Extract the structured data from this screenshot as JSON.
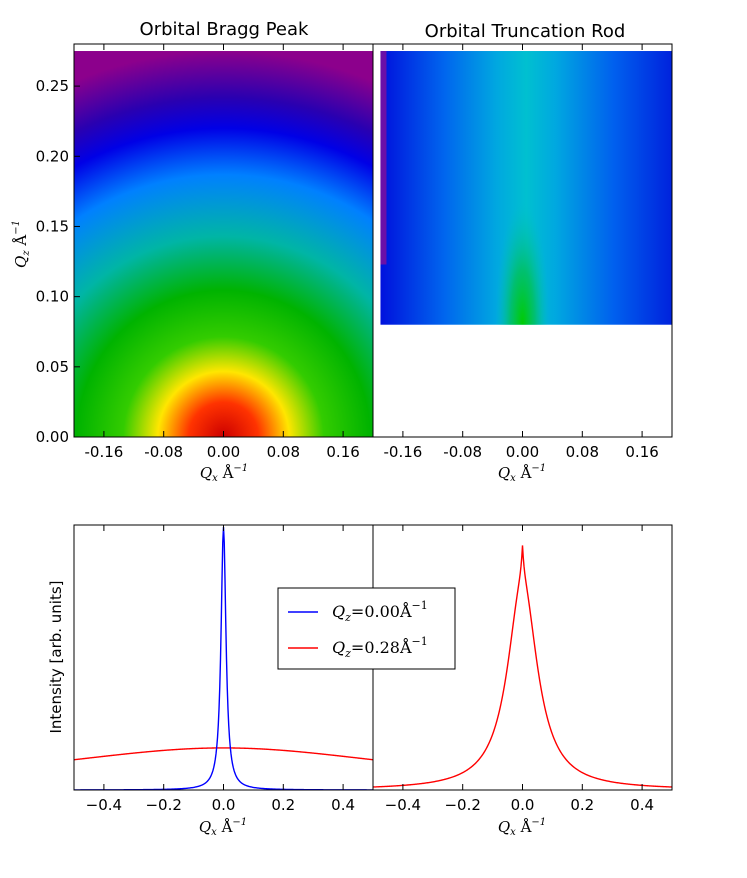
{
  "colors": {
    "blue": "#0000ff",
    "red": "#ff0000",
    "colormap": [
      "#800080",
      "#0000ff",
      "#00bfff",
      "#00c000",
      "#ffff00",
      "#ff0000"
    ]
  },
  "chart_data": [
    {
      "type": "heatmap",
      "title": "Orbital Bragg Peak",
      "xlabel": "Q_x Å^-1",
      "ylabel": "Q_z Å^-1",
      "xlim": [
        -0.2,
        0.2
      ],
      "ylim": [
        0,
        0.28
      ],
      "xticks": [
        "-0.16",
        "-0.08",
        "0.00",
        "0.08",
        "0.16"
      ],
      "yticks": [
        "0.00",
        "0.05",
        "0.10",
        "0.15",
        "0.20",
        "0.25"
      ],
      "data_extent": {
        "qx": [
          -0.2,
          0.2
        ],
        "qz": [
          0,
          0.275
        ]
      },
      "colormap": "spectral",
      "peak": {
        "qx": 0.0,
        "qz": 0.0
      }
    },
    {
      "type": "heatmap",
      "title": "Orbital Truncation Rod",
      "xlabel": "Q_x Å^-1",
      "xlim": [
        -0.2,
        0.2
      ],
      "ylim": [
        0,
        0.28
      ],
      "xticks": [
        "-0.16",
        "-0.08",
        "0.00",
        "0.08",
        "0.16"
      ],
      "data_extent": {
        "qx": [
          -0.19,
          0.2
        ],
        "qz": [
          0.08,
          0.275
        ]
      },
      "colormap": "spectral",
      "peak": {
        "qx": 0.0,
        "qz": 0.08
      }
    },
    {
      "type": "line",
      "xlabel": "Q_x Å^-1",
      "ylabel": "Intensity [arb. units]",
      "xlim": [
        -0.5,
        0.5
      ],
      "xticks": [
        "−0.4",
        "−0.2",
        "0.0",
        "0.2",
        "0.4"
      ],
      "legend_position": "center",
      "series": [
        {
          "name_main": "Q",
          "name_sub": "z",
          "name_rest": "=0.00Å",
          "name_sup": "−1",
          "color": "#0000ff",
          "shape": "narrow_lorentzian",
          "center": 0.0,
          "hwhm": 0.01,
          "peak": 1.0
        },
        {
          "name_main": "Q",
          "name_sub": "z",
          "name_rest": "=0.28Å",
          "name_sup": "−1",
          "color": "#ff0000",
          "shape": "broad_lorentzian",
          "center": 0.0,
          "hwhm": 0.8,
          "peak": 0.16
        }
      ]
    },
    {
      "type": "line",
      "xlabel": "Q_x Å^-1",
      "xlim": [
        -0.5,
        0.5
      ],
      "xticks": [
        "−0.4",
        "−0.2",
        "0.0",
        "0.2",
        "0.4"
      ],
      "series": [
        {
          "color": "#ff0000",
          "shape": "lorentzian_cusp",
          "center": 0.0,
          "hwhm": 0.06,
          "peak": 0.93
        }
      ]
    }
  ]
}
